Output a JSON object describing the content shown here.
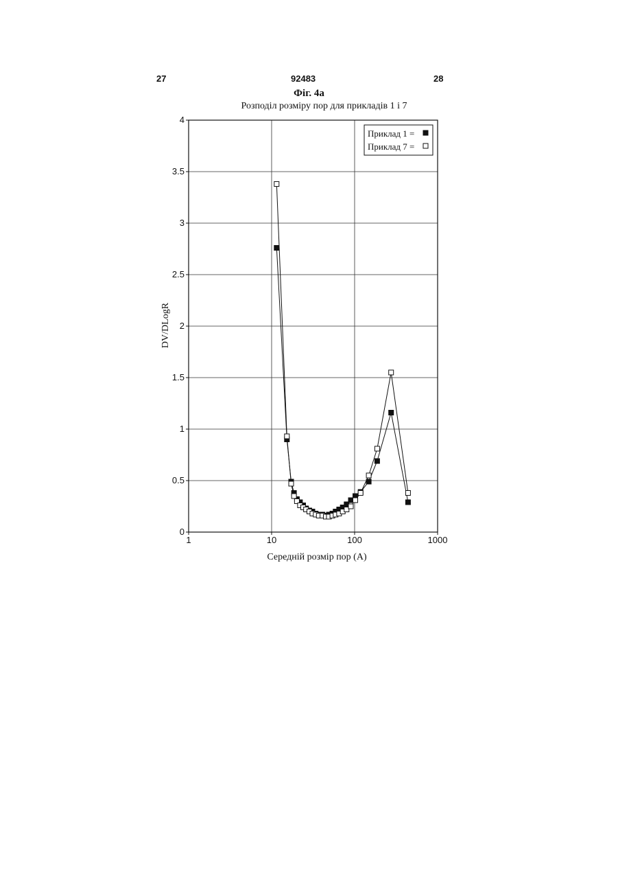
{
  "header": {
    "left_page": "27",
    "center_number": "92483",
    "right_page": "28"
  },
  "figure_label": "Фіг. 4а",
  "chart_data": {
    "type": "line",
    "title": "Розподіл розміру пор для прикладів 1 і 7",
    "xlabel": "Середній розмір пор (А)",
    "ylabel": "DV/DLogR",
    "x_scale": "log",
    "xlim": [
      1,
      1000
    ],
    "ylim": [
      0,
      4
    ],
    "x_ticks": [
      1,
      10,
      100,
      1000
    ],
    "x_tick_labels": [
      "1",
      "10",
      "100",
      "1000"
    ],
    "y_ticks": [
      0,
      0.5,
      1,
      1.5,
      2,
      2.5,
      3,
      3.5,
      4
    ],
    "y_tick_labels": [
      "0",
      "0.5",
      "1",
      "1.5",
      "2",
      "2.5",
      "3",
      "3.5",
      "4"
    ],
    "grid": true,
    "legend_position": "top-right",
    "series": [
      {
        "name": "Приклад 1",
        "marker": "filled-square",
        "color": "#111111",
        "points": [
          [
            11.5,
            2.76
          ],
          [
            15.3,
            0.9
          ],
          [
            17.2,
            0.49
          ],
          [
            18.6,
            0.38
          ],
          [
            20.2,
            0.32
          ],
          [
            22,
            0.29
          ],
          [
            24,
            0.26
          ],
          [
            26,
            0.23
          ],
          [
            28.5,
            0.21
          ],
          [
            31,
            0.2
          ],
          [
            34,
            0.18
          ],
          [
            37,
            0.17
          ],
          [
            41,
            0.17
          ],
          [
            45,
            0.16
          ],
          [
            49,
            0.17
          ],
          [
            54,
            0.18
          ],
          [
            59,
            0.2
          ],
          [
            65,
            0.22
          ],
          [
            72,
            0.24
          ],
          [
            80,
            0.27
          ],
          [
            90,
            0.31
          ],
          [
            102,
            0.35
          ],
          [
            118,
            0.39
          ],
          [
            148,
            0.49
          ],
          [
            187,
            0.69
          ],
          [
            275,
            1.16
          ],
          [
            440,
            0.29
          ]
        ]
      },
      {
        "name": "Приклад 7",
        "marker": "open-square",
        "color": "#111111",
        "points": [
          [
            11.5,
            3.38
          ],
          [
            15.3,
            0.93
          ],
          [
            17.2,
            0.47
          ],
          [
            18.6,
            0.35
          ],
          [
            20.2,
            0.3
          ],
          [
            22,
            0.26
          ],
          [
            24,
            0.24
          ],
          [
            26,
            0.22
          ],
          [
            28.5,
            0.2
          ],
          [
            31,
            0.18
          ],
          [
            34,
            0.17
          ],
          [
            37,
            0.16
          ],
          [
            41,
            0.16
          ],
          [
            45,
            0.15
          ],
          [
            49,
            0.15
          ],
          [
            54,
            0.16
          ],
          [
            59,
            0.17
          ],
          [
            65,
            0.18
          ],
          [
            72,
            0.2
          ],
          [
            80,
            0.22
          ],
          [
            90,
            0.25
          ],
          [
            102,
            0.31
          ],
          [
            118,
            0.38
          ],
          [
            148,
            0.55
          ],
          [
            187,
            0.81
          ],
          [
            275,
            1.55
          ],
          [
            440,
            0.38
          ]
        ]
      }
    ],
    "legend": [
      {
        "label": "Приклад 1 = ",
        "marker": "filled-square"
      },
      {
        "label": "Приклад 7 = ",
        "marker": "open-square"
      }
    ]
  }
}
